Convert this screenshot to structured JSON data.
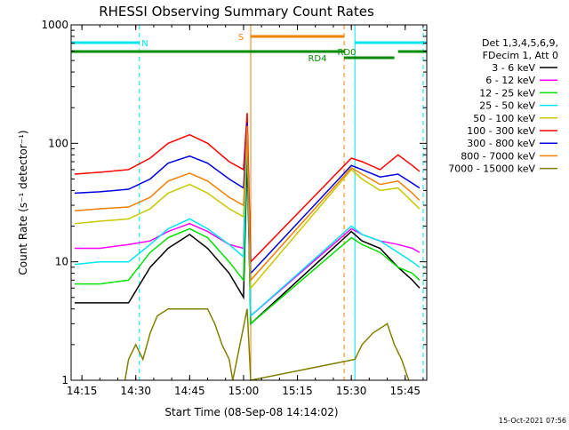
{
  "chart_data": {
    "type": "line",
    "title": "RHESSI Observing Summary Count Rates",
    "xlabel": "Start Time (08-Sep-08 14:14:02)",
    "ylabel": "Count Rate (s⁻¹ detector⁻¹)",
    "yscale": "log",
    "ylim": [
      1,
      1000
    ],
    "xlim": [
      "14:12",
      "15:51"
    ],
    "x_ticks": [
      "14:15",
      "14:30",
      "14:45",
      "15:00",
      "15:15",
      "15:30",
      "15:45"
    ],
    "y_ticks": [
      "1",
      "10",
      "100",
      "1000"
    ],
    "grid": false,
    "legend_header": [
      "Det 1,3,4,5,6,9,",
      "FDecim 1, Att 0"
    ],
    "legend_placement": "right",
    "timestamp": "15-Oct-2021 07:56",
    "flags": [
      {
        "label": "N",
        "color": "#00e5ee",
        "segments": [
          [
            "14:12",
            "14:31"
          ],
          [
            "15:31",
            "15:51"
          ]
        ]
      },
      {
        "label": "S",
        "color": "#f08000",
        "segments": [
          [
            "15:02",
            "15:28"
          ]
        ]
      },
      {
        "label": "RD0",
        "color": "#008c00",
        "segments": [
          [
            "14:12",
            "15:28"
          ],
          [
            "15:43",
            "15:51"
          ]
        ]
      },
      {
        "label": "RD4",
        "color": "#008c00",
        "segments": [
          [
            "15:28",
            "15:42"
          ]
        ]
      }
    ],
    "night_markers": {
      "color": "#00e5ee",
      "times": [
        "14:12",
        "14:31",
        "15:31",
        "15:50"
      ]
    },
    "saa_markers": {
      "color": "#f08000",
      "times": [
        "15:02",
        "15:28"
      ]
    },
    "series": [
      {
        "name": "3 - 6 keV",
        "color": "#000000",
        "x": [
          "14:13",
          "14:20",
          "14:28",
          "14:34",
          "14:39",
          "14:45",
          "14:50",
          "14:56",
          "15:00",
          "15:01",
          "15:02",
          "15:30",
          "15:33",
          "15:38",
          "15:43",
          "15:47",
          "15:49"
        ],
        "values": [
          4.5,
          4.5,
          4.5,
          9,
          13,
          17,
          13,
          8,
          5,
          80,
          3,
          18,
          15,
          13,
          9,
          7,
          6
        ]
      },
      {
        "name": "6 - 12 keV",
        "color": "#ff00ff",
        "x": [
          "14:13",
          "14:20",
          "14:28",
          "14:34",
          "14:39",
          "14:45",
          "14:50",
          "14:56",
          "15:00",
          "15:01",
          "15:02",
          "15:30",
          "15:33",
          "15:38",
          "15:43",
          "15:47",
          "15:49"
        ],
        "values": [
          13,
          13,
          14,
          15,
          18,
          21,
          18,
          14,
          13,
          160,
          3.5,
          19,
          17,
          15,
          14,
          13,
          12
        ]
      },
      {
        "name": "12 - 25 keV",
        "color": "#00e000",
        "x": [
          "14:13",
          "14:20",
          "14:28",
          "14:34",
          "14:39",
          "14:45",
          "14:50",
          "14:56",
          "15:00",
          "15:01",
          "15:02",
          "15:30",
          "15:33",
          "15:38",
          "15:43",
          "15:47",
          "15:49"
        ],
        "values": [
          6.5,
          6.5,
          7,
          12,
          16,
          19,
          16,
          10,
          7,
          130,
          3,
          16,
          14,
          12,
          9,
          8,
          7
        ]
      },
      {
        "name": "25 - 50 keV",
        "color": "#00e5ee",
        "x": [
          "14:13",
          "14:20",
          "14:28",
          "14:34",
          "14:39",
          "14:45",
          "14:50",
          "14:56",
          "15:00",
          "15:01",
          "15:02",
          "15:30",
          "15:33",
          "15:38",
          "15:43",
          "15:47",
          "15:49"
        ],
        "values": [
          9.5,
          10,
          10,
          14,
          19,
          23,
          19,
          14,
          11,
          140,
          3.5,
          20,
          17,
          15,
          12,
          10,
          9
        ]
      },
      {
        "name": "50 - 100 keV",
        "color": "#c8c800",
        "x": [
          "14:13",
          "14:20",
          "14:28",
          "14:34",
          "14:39",
          "14:45",
          "14:50",
          "14:56",
          "15:00",
          "15:01",
          "15:02",
          "15:30",
          "15:33",
          "15:38",
          "15:43",
          "15:47",
          "15:49"
        ],
        "values": [
          21,
          22,
          23,
          28,
          38,
          45,
          38,
          28,
          24,
          140,
          6,
          60,
          50,
          40,
          42,
          32,
          28
        ]
      },
      {
        "name": "100 - 300 keV",
        "color": "#ff0000",
        "x": [
          "14:13",
          "14:20",
          "14:28",
          "14:34",
          "14:39",
          "14:45",
          "14:50",
          "14:56",
          "15:00",
          "15:01",
          "15:02",
          "15:30",
          "15:33",
          "15:38",
          "15:43",
          "15:47",
          "15:49"
        ],
        "values": [
          55,
          57,
          60,
          75,
          100,
          118,
          100,
          70,
          60,
          180,
          10,
          75,
          70,
          60,
          80,
          65,
          58
        ]
      },
      {
        "name": "300 - 800 keV",
        "color": "#0000e0",
        "x": [
          "14:13",
          "14:20",
          "14:28",
          "14:34",
          "14:39",
          "14:45",
          "14:50",
          "14:56",
          "15:00",
          "15:01",
          "15:02",
          "15:30",
          "15:33",
          "15:38",
          "15:43",
          "15:47",
          "15:49"
        ],
        "values": [
          38,
          39,
          41,
          50,
          68,
          78,
          68,
          50,
          42,
          150,
          8,
          65,
          60,
          52,
          55,
          46,
          42
        ]
      },
      {
        "name": "800 - 7000 keV",
        "color": "#f08000",
        "x": [
          "14:13",
          "14:20",
          "14:28",
          "14:34",
          "14:39",
          "14:45",
          "14:50",
          "14:56",
          "15:00",
          "15:01",
          "15:02",
          "15:30",
          "15:33",
          "15:38",
          "15:43",
          "15:47",
          "15:49"
        ],
        "values": [
          27,
          28,
          29,
          35,
          48,
          56,
          48,
          35,
          30,
          140,
          7,
          62,
          55,
          45,
          48,
          38,
          33
        ]
      },
      {
        "name": "7000 - 15000 keV",
        "color": "#808000",
        "x": [
          "14:27",
          "14:28",
          "14:30",
          "14:32",
          "14:34",
          "14:36",
          "14:39",
          "14:45",
          "14:50",
          "14:52",
          "14:54",
          "14:56",
          "14:57",
          "15:01",
          "15:02",
          "15:31",
          "15:33",
          "15:36",
          "15:40",
          "15:42",
          "15:44",
          "15:46"
        ],
        "values": [
          1,
          1.5,
          2,
          1.5,
          2.5,
          3.5,
          4,
          4,
          4,
          3,
          2,
          1.5,
          1,
          4,
          1,
          1.5,
          2,
          2.5,
          3,
          2,
          1.5,
          1
        ]
      }
    ]
  }
}
